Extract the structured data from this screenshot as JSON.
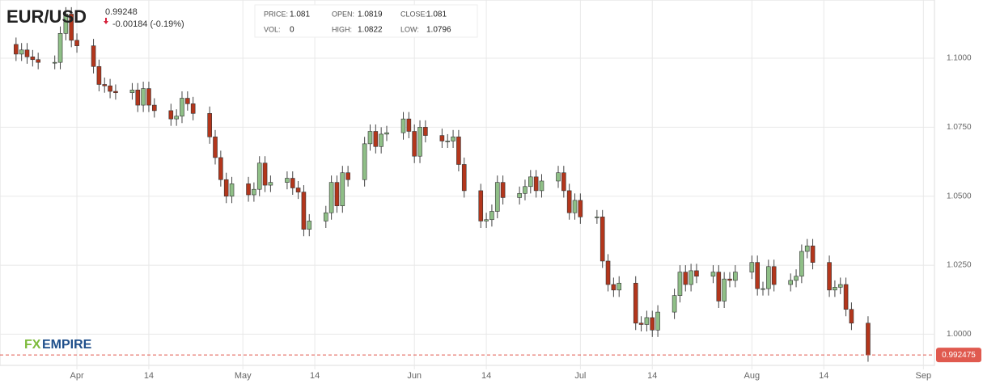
{
  "header": {
    "symbol": "EUR/USD",
    "last": "0.99248",
    "change": "-0.00184 (-0.19%)",
    "info": [
      {
        "label": "PRICE:",
        "value": "1.081"
      },
      {
        "label": "OPEN:",
        "value": "1.0819"
      },
      {
        "label": "CLOSE:",
        "value": "1.081"
      },
      {
        "label": "VOL:",
        "value": "0"
      },
      {
        "label": "HIGH:",
        "value": "1.0822"
      },
      {
        "label": "LOW:",
        "value": "1.0796"
      }
    ]
  },
  "logo": {
    "fx": "FX",
    "name": "EMPIRE"
  },
  "chart_data": {
    "type": "candlestick",
    "up_color": "#8fbf87",
    "down_color": "#b3361c",
    "grid": true,
    "xlim": [
      -13.9,
      155
    ],
    "ylim": [
      0.9887,
      1.1211
    ],
    "xticks": [
      {
        "value": 0,
        "label": "Apr"
      },
      {
        "value": 13,
        "label": "14"
      },
      {
        "value": 30,
        "label": "May"
      },
      {
        "value": 43,
        "label": "14"
      },
      {
        "value": 61,
        "label": "Jun"
      },
      {
        "value": 74,
        "label": "14"
      },
      {
        "value": 91,
        "label": "Jul"
      },
      {
        "value": 104,
        "label": "14"
      },
      {
        "value": 122,
        "label": "Aug"
      },
      {
        "value": 135,
        "label": "14"
      },
      {
        "value": 153,
        "label": "Sep"
      }
    ],
    "yticks": [
      {
        "value": 1.0,
        "label": "1.0000"
      },
      {
        "value": 1.025,
        "label": "1.0250"
      },
      {
        "value": 1.05,
        "label": "1.0500"
      },
      {
        "value": 1.075,
        "label": "1.0750"
      },
      {
        "value": 1.1,
        "label": "1.1000"
      }
    ],
    "last_price": {
      "value": 0.992475,
      "label": "0.992475",
      "color": "#e05a4f"
    },
    "x": [
      -11,
      -10,
      -9,
      -8,
      -7,
      -4,
      -3,
      -2,
      -1,
      0,
      3,
      4,
      5,
      6,
      7,
      10,
      11,
      12,
      13,
      14,
      17,
      18,
      19,
      20,
      21,
      24,
      25,
      26,
      27,
      28,
      31,
      32,
      33,
      34,
      35,
      38,
      39,
      40,
      41,
      42,
      45,
      46,
      47,
      48,
      49,
      52,
      53,
      54,
      55,
      56,
      59,
      60,
      61,
      62,
      63,
      66,
      67,
      68,
      69,
      70,
      73,
      74,
      75,
      76,
      77,
      80,
      81,
      82,
      83,
      84,
      87,
      88,
      89,
      90,
      91,
      94,
      95,
      96,
      97,
      98,
      101,
      102,
      103,
      104,
      105,
      108,
      109,
      110,
      111,
      112,
      115,
      116,
      117,
      118,
      119,
      122,
      123,
      124,
      125,
      126,
      129,
      130,
      131,
      132,
      133,
      136,
      137,
      138,
      139,
      140,
      143
    ],
    "open": [
      1.105,
      1.1015,
      1.103,
      1.1005,
      1.0995,
      1.0985,
      1.0985,
      1.109,
      1.116,
      1.1065,
      1.1045,
      1.097,
      1.0905,
      1.09,
      1.088,
      1.0875,
      1.0885,
      1.083,
      1.089,
      1.083,
      1.081,
      1.078,
      1.079,
      1.0855,
      1.0835,
      1.08,
      1.0715,
      1.064,
      1.056,
      1.05,
      1.0545,
      1.0505,
      1.0525,
      1.062,
      1.054,
      1.055,
      1.0565,
      1.053,
      1.0515,
      1.038,
      1.041,
      1.044,
      1.055,
      1.0465,
      1.0585,
      1.056,
      1.069,
      1.0735,
      1.068,
      1.0725,
      1.073,
      1.078,
      1.0735,
      1.0645,
      1.075,
      1.072,
      1.07,
      1.07,
      1.0715,
      1.0615,
      1.052,
      1.041,
      1.0415,
      1.0445,
      1.055,
      1.0495,
      1.051,
      1.0535,
      1.057,
      1.052,
      1.0555,
      1.0585,
      1.052,
      1.044,
      1.0485,
      1.0425,
      1.0425,
      1.0265,
      1.018,
      1.016,
      1.0185,
      1.004,
      1.0035,
      1.006,
      1.0015,
      1.008,
      1.014,
      1.0225,
      1.018,
      1.023,
      1.021,
      1.0225,
      1.012,
      1.02,
      1.0195,
      1.0225,
      1.026,
      1.0165,
      1.0165,
      1.0245,
      1.018,
      1.0195,
      1.021,
      1.03,
      1.032,
      1.026,
      1.016,
      1.017,
      1.018,
      1.009,
      1.004
    ],
    "high": [
      1.1075,
      1.1055,
      1.1055,
      1.103,
      1.102,
      1.101,
      1.1115,
      1.1185,
      1.1185,
      1.109,
      1.107,
      1.0995,
      1.093,
      1.0925,
      1.0905,
      1.091,
      1.091,
      1.0915,
      1.0915,
      1.0855,
      1.0835,
      1.0815,
      1.088,
      1.088,
      1.086,
      1.0825,
      1.074,
      1.0665,
      1.0585,
      1.057,
      1.057,
      1.055,
      1.0645,
      1.0645,
      1.0575,
      1.059,
      1.059,
      1.0555,
      1.054,
      1.0435,
      1.0465,
      1.0575,
      1.0575,
      1.061,
      1.061,
      1.0715,
      1.076,
      1.076,
      1.075,
      1.0755,
      1.0805,
      1.0805,
      1.076,
      1.0775,
      1.0775,
      1.0745,
      1.0725,
      1.074,
      1.074,
      1.064,
      1.0545,
      1.044,
      1.047,
      1.0575,
      1.0575,
      1.0535,
      1.056,
      1.0595,
      1.0595,
      1.058,
      1.061,
      1.061,
      1.0545,
      1.051,
      1.051,
      1.045,
      1.045,
      1.029,
      1.0205,
      1.021,
      1.021,
      1.0065,
      1.0085,
      1.0085,
      1.0105,
      1.0165,
      1.025,
      1.025,
      1.0255,
      1.0255,
      1.025,
      1.025,
      1.0225,
      1.0225,
      1.025,
      1.0285,
      1.0285,
      1.019,
      1.027,
      1.027,
      1.022,
      1.0235,
      1.0325,
      1.0345,
      1.0345,
      1.0285,
      1.0195,
      1.0205,
      1.0205,
      1.0115,
      1.0065
    ],
    "low": [
      1.099,
      1.099,
      1.098,
      1.097,
      1.096,
      1.096,
      1.096,
      1.1065,
      1.104,
      1.102,
      1.0945,
      1.088,
      1.0875,
      1.0855,
      1.085,
      1.085,
      1.0805,
      1.0805,
      1.0805,
      1.0785,
      1.0755,
      1.0755,
      1.0765,
      1.081,
      1.0775,
      1.069,
      1.0615,
      1.0535,
      1.0475,
      1.0475,
      1.048,
      1.048,
      1.05,
      1.0515,
      1.0515,
      1.0525,
      1.0505,
      1.049,
      1.0355,
      1.0355,
      1.0385,
      1.0415,
      1.044,
      1.044,
      1.0535,
      1.0535,
      1.0665,
      1.0655,
      1.0655,
      1.07,
      1.0705,
      1.071,
      1.062,
      1.062,
      1.0695,
      1.0675,
      1.0675,
      1.0675,
      1.059,
      1.0495,
      1.0385,
      1.0385,
      1.039,
      1.042,
      1.047,
      1.047,
      1.0485,
      1.051,
      1.0495,
      1.0495,
      1.053,
      1.0495,
      1.0415,
      1.0415,
      1.04,
      1.04,
      1.024,
      1.0155,
      1.0135,
      1.0135,
      1.0015,
      1.001,
      1.001,
      0.999,
      0.999,
      1.0055,
      1.0115,
      1.0155,
      1.0155,
      1.0185,
      1.0185,
      1.0095,
      1.0095,
      1.017,
      1.017,
      1.02,
      1.014,
      1.014,
      1.014,
      1.0155,
      1.0155,
      1.017,
      1.0185,
      1.0275,
      1.0235,
      1.0135,
      1.0135,
      1.0145,
      1.0065,
      1.0015,
      0.99
    ],
    "close": [
      1.1015,
      1.103,
      1.1005,
      1.0995,
      1.0985,
      1.0985,
      1.109,
      1.116,
      1.1065,
      1.1045,
      1.097,
      1.0905,
      1.09,
      1.088,
      1.0875,
      1.0885,
      1.083,
      1.089,
      1.083,
      1.081,
      1.078,
      1.079,
      1.0855,
      1.0835,
      1.08,
      1.0715,
      1.064,
      1.056,
      1.05,
      1.0545,
      1.0505,
      1.0525,
      1.062,
      1.054,
      1.055,
      1.0565,
      1.053,
      1.0515,
      1.038,
      1.041,
      1.044,
      1.055,
      1.0465,
      1.0585,
      1.056,
      1.069,
      1.0735,
      1.068,
      1.0725,
      1.073,
      1.078,
      1.0735,
      1.0645,
      1.075,
      1.072,
      1.07,
      1.07,
      1.0715,
      1.0615,
      1.052,
      1.041,
      1.0415,
      1.0445,
      1.055,
      1.0495,
      1.051,
      1.0535,
      1.057,
      1.052,
      1.0555,
      1.0585,
      1.052,
      1.044,
      1.0485,
      1.0425,
      1.0425,
      1.0265,
      1.018,
      1.016,
      1.0185,
      1.004,
      1.0035,
      1.006,
      1.0015,
      1.008,
      1.014,
      1.0225,
      1.018,
      1.023,
      1.021,
      1.0225,
      1.012,
      1.02,
      1.0195,
      1.0225,
      1.026,
      1.0165,
      1.0165,
      1.0245,
      1.018,
      1.0195,
      1.021,
      1.03,
      1.032,
      1.026,
      1.016,
      1.017,
      1.018,
      1.009,
      1.004,
      0.9925
    ]
  }
}
